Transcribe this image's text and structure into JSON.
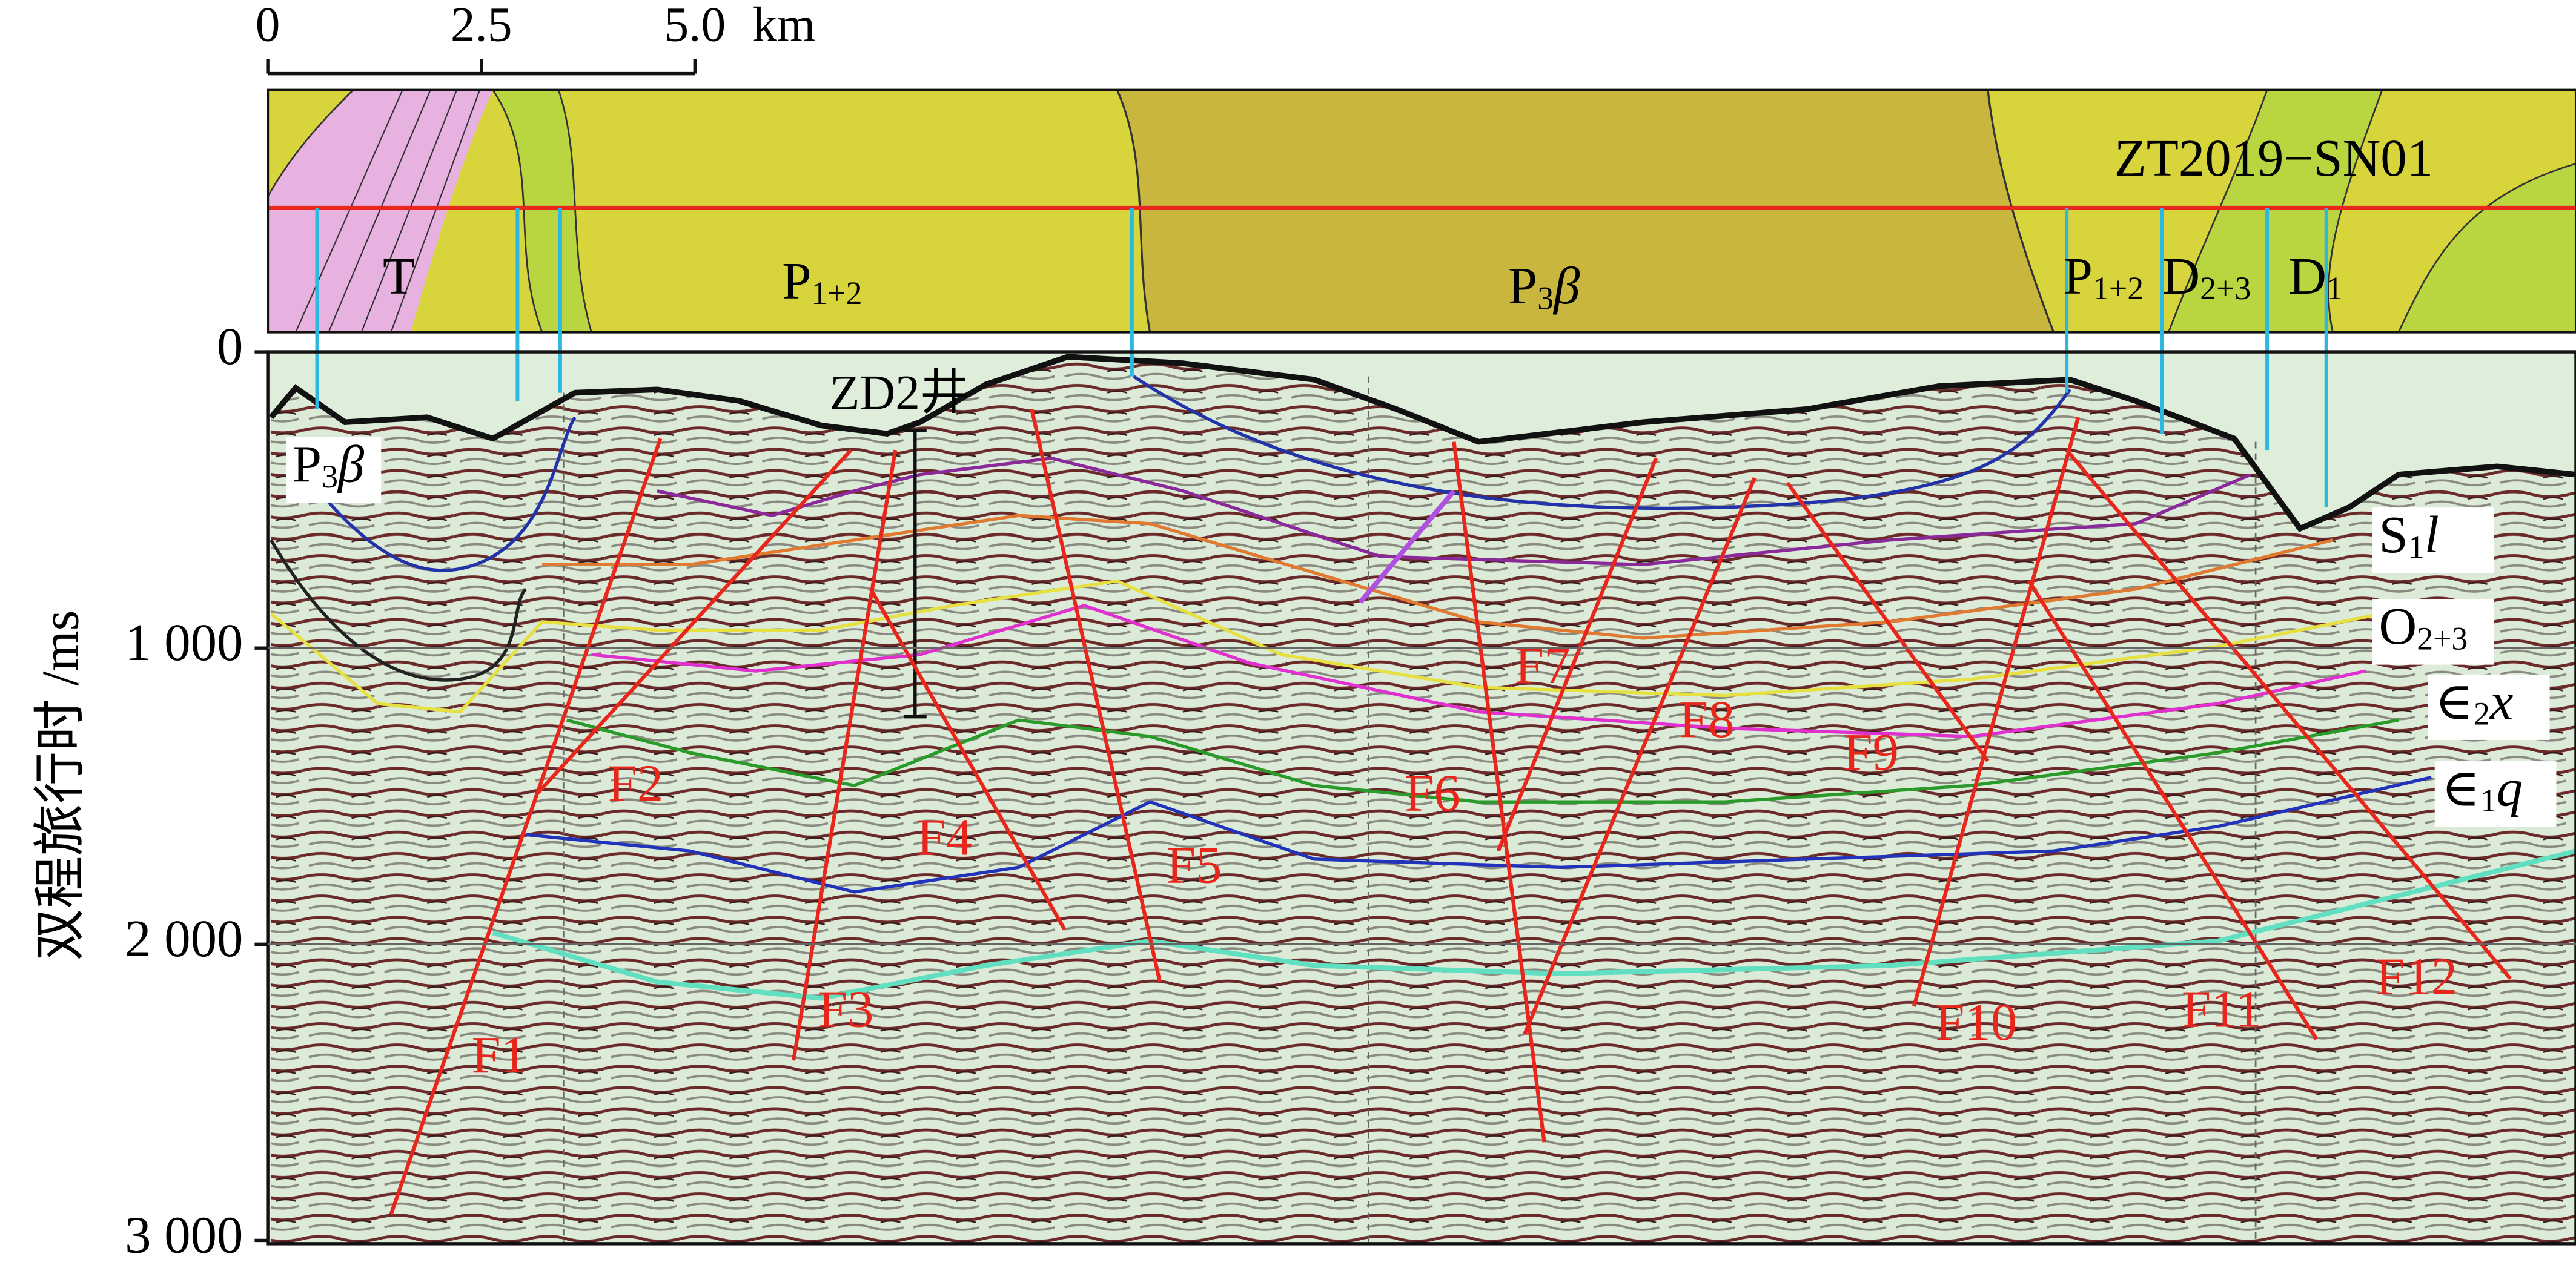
{
  "scale_bar": {
    "ticks": [
      0,
      2.5,
      {
        "value": 5,
        "label": "5.0"
      }
    ],
    "unit": "km"
  },
  "axis": {
    "label": "双程旅行时 /ms",
    "ticks": [
      0,
      {
        "value": 1000,
        "label": "1 000"
      },
      {
        "value": 2000,
        "label": "2 000"
      },
      {
        "value": 3000,
        "label": "3 000"
      }
    ]
  },
  "line_name": "ZT2019−SN01",
  "well": "ZD2井",
  "map_formations": [
    [
      {
        "t": "T"
      }
    ],
    [
      {
        "t": "P"
      },
      {
        "t": "1+2",
        "sub": true
      }
    ],
    [
      {
        "t": "P"
      },
      {
        "t": "3",
        "sub": true
      },
      {
        "t": "β",
        "italic": true
      }
    ],
    [
      {
        "t": "P"
      },
      {
        "t": "1+2",
        "sub": true
      }
    ],
    [
      {
        "t": "D"
      },
      {
        "t": "2+3",
        "sub": true
      }
    ],
    [
      {
        "t": "D"
      },
      {
        "t": "1",
        "sub": true
      }
    ]
  ],
  "section_formation": [
    {
      "t": "P"
    },
    {
      "t": "3",
      "sub": true
    },
    {
      "t": "β",
      "italic": true
    }
  ],
  "horizons": [
    [
      {
        "t": "S"
      },
      {
        "t": "1",
        "sub": true
      },
      {
        "t": "l",
        "italic": true
      }
    ],
    [
      {
        "t": "O"
      },
      {
        "t": "2+3",
        "sub": true
      }
    ],
    [
      {
        "t": "∈"
      },
      {
        "t": "2",
        "sub": true
      },
      {
        "t": "x",
        "italic": true
      }
    ],
    [
      {
        "t": "∈"
      },
      {
        "t": "1",
        "sub": true
      },
      {
        "t": "q",
        "italic": true
      }
    ]
  ],
  "faults": [
    "F1",
    "F2",
    "F3",
    "F4",
    "F5",
    "F6",
    "F7",
    "F8",
    "F9",
    "F10",
    "F11",
    "F12"
  ]
}
